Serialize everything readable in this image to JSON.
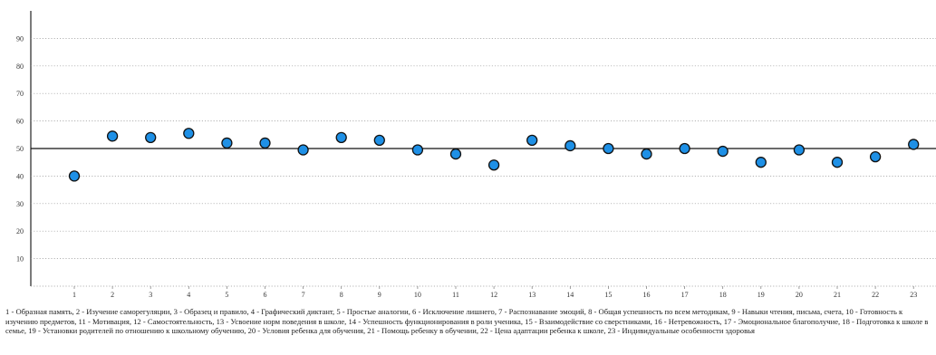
{
  "chart_data": {
    "type": "scatter",
    "categories": [
      "1",
      "2",
      "3",
      "4",
      "5",
      "6",
      "7",
      "8",
      "9",
      "10",
      "11",
      "12",
      "13",
      "14",
      "15",
      "16",
      "17",
      "18",
      "19",
      "20",
      "21",
      "22",
      "23"
    ],
    "values": [
      40,
      54.5,
      54,
      55.5,
      52,
      52,
      49.5,
      54,
      53,
      49.5,
      48,
      44,
      53,
      51,
      50,
      48,
      50,
      49,
      45,
      49.5,
      45,
      47,
      51.5
    ],
    "ylim": [
      0,
      100
    ],
    "yticks": [
      10,
      20,
      30,
      40,
      50,
      60,
      70,
      80,
      90
    ],
    "reference_line": 50,
    "grid": "horizontal-dotted",
    "marker_color": "#1e90e6",
    "marker_edge": "#111111",
    "title": "",
    "xlabel": "",
    "ylabel": ""
  },
  "legend_text": "1 - Образная память, 2 - Изучение саморегуляции, 3 - Образец и правило, 4 - Графический диктант, 5 - Простые аналогии, 6 - Исключение лишнего, 7 - Распознавание эмоций, 8 - Общая успешность по всем методикам, 9 - Навыки чтения, письма, счета, 10 - Готовность к изучению предметов, 11 - Мотивация, 12 - Самостоятельность, 13 - Усвоение норм поведения в школе, 14 - Успешность функционирования в роли ученика, 15 - Взаимодействие со сверстниками, 16 - Нетревожность, 17 - Эмоциональное благополучие, 18 - Подготовка к школе в семье, 19 - Установки родителей по отношению к школьному обучению, 20 - Условия ребенка для обучения, 21 - Помощь ребенку в обучении, 22 - Цена адаптации ребенка к школе, 23 - Индивидуальные особенности здоровья"
}
